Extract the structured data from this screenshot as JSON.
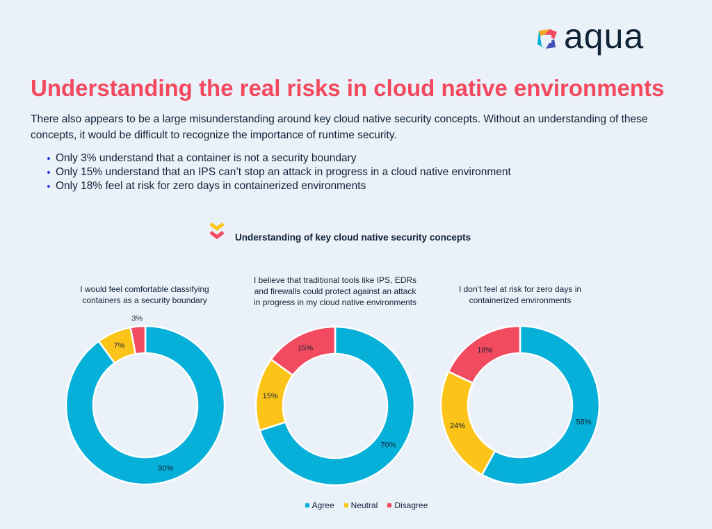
{
  "brand": {
    "name": "aqua"
  },
  "title": "Understanding the real risks in cloud native environments",
  "intro": "There also appears to be a large misunderstanding around key cloud native security concepts. Without an understanding of these concepts, it would be difficult to recognize the importance of runtime security.",
  "bullets": [
    "Only 3% understand that a container is not a security boundary",
    "Only 15% understand that an IPS can’t stop an attack in progress in a cloud native environment",
    "Only 18% feel at risk for zero days in containerized environments"
  ],
  "chart_heading": "Understanding of key cloud native security concepts",
  "colors": {
    "agree": "#07b0d8",
    "neutral": "#fcc419",
    "disagree": "#f24a5e",
    "title": "#f3485d",
    "background": "#eaf1f9"
  },
  "chart_data": [
    {
      "type": "pie",
      "title": "I would feel comfortable classifying containers as a security boundary",
      "categories": [
        "Agree",
        "Neutral",
        "Disagree"
      ],
      "values": [
        90,
        7,
        3
      ],
      "labels": [
        "90%",
        "7%",
        "3%"
      ]
    },
    {
      "type": "pie",
      "title": "I believe that traditional tools like IPS, EDRs and firewalls could protect against an attack in progress in my cloud native environments",
      "categories": [
        "Agree",
        "Neutral",
        "Disagree"
      ],
      "values": [
        70,
        15,
        15
      ],
      "labels": [
        "70%",
        "15%",
        "15%"
      ]
    },
    {
      "type": "pie",
      "title": "I don’t feel at risk for zero days in containerized environments",
      "categories": [
        "Agree",
        "Neutral",
        "Disagree"
      ],
      "values": [
        58,
        24,
        18
      ],
      "labels": [
        "58%",
        "24%",
        "18%"
      ]
    }
  ],
  "legend": [
    "Agree",
    "Neutral",
    "Disagree"
  ]
}
